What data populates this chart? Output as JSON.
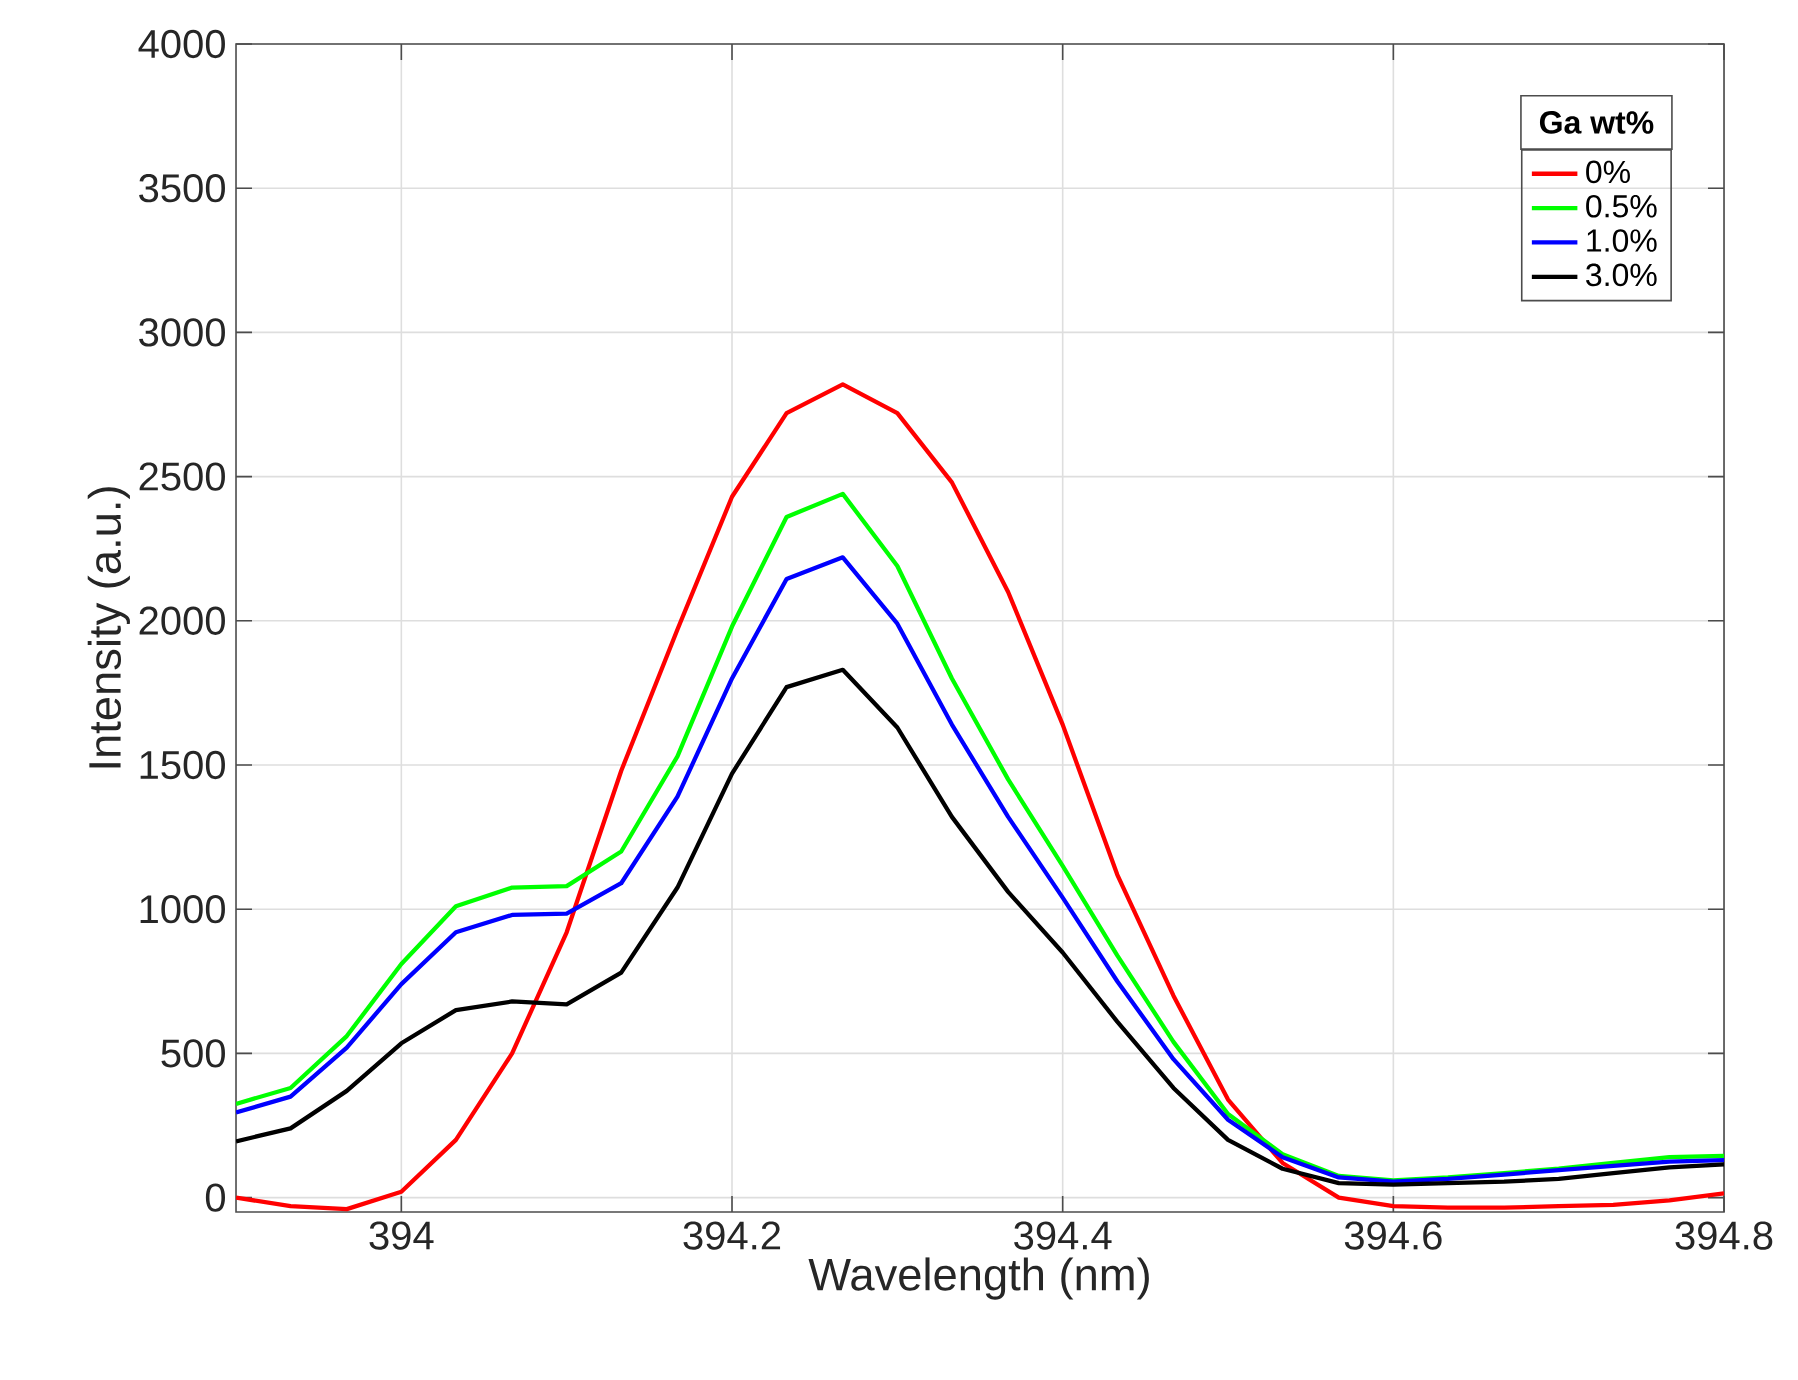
{
  "chart_data": {
    "type": "line",
    "xlabel": "Wavelength (nm)",
    "ylabel": "Intensity (a.u.)",
    "legend_title": "Ga wt%",
    "x": [
      393.9,
      393.9333,
      393.9667,
      394.0,
      394.0333,
      394.0667,
      394.1,
      394.1333,
      394.1667,
      394.2,
      394.2333,
      394.2667,
      394.3,
      394.3333,
      394.3667,
      394.4,
      394.4333,
      394.4667,
      394.5,
      394.5333,
      394.5667,
      394.6,
      394.6333,
      394.6667,
      394.7,
      394.7333,
      394.7667,
      394.8
    ],
    "series": [
      {
        "name": "0%",
        "color": "#ff0000",
        "values": [
          0,
          -30,
          -40,
          20,
          200,
          500,
          920,
          1480,
          1970,
          2430,
          2720,
          2820,
          2720,
          2480,
          2100,
          1640,
          1120,
          700,
          340,
          120,
          0,
          -30,
          -35,
          -35,
          -30,
          -25,
          -10,
          15
        ]
      },
      {
        "name": "0.5%",
        "color": "#00ff00",
        "values": [
          325,
          380,
          560,
          810,
          1010,
          1075,
          1080,
          1200,
          1530,
          1980,
          2360,
          2440,
          2190,
          1800,
          1450,
          1150,
          840,
          540,
          290,
          150,
          75,
          60,
          70,
          85,
          100,
          120,
          140,
          145
        ]
      },
      {
        "name": "1.0%",
        "color": "#0000ff",
        "values": [
          295,
          350,
          520,
          740,
          920,
          980,
          985,
          1090,
          1390,
          1800,
          2145,
          2220,
          1990,
          1640,
          1320,
          1040,
          750,
          480,
          270,
          140,
          70,
          55,
          65,
          80,
          95,
          110,
          125,
          130
        ]
      },
      {
        "name": "3.0%",
        "color": "#000000",
        "values": [
          195,
          240,
          370,
          535,
          650,
          680,
          670,
          780,
          1075,
          1470,
          1770,
          1830,
          1630,
          1320,
          1060,
          850,
          610,
          380,
          200,
          100,
          50,
          45,
          50,
          55,
          65,
          85,
          105,
          115
        ]
      }
    ],
    "xlim": [
      393.9,
      394.8
    ],
    "ylim": [
      -50,
      4000
    ],
    "xticks": [
      394,
      394.2,
      394.4,
      394.6,
      394.8
    ],
    "yticks": [
      0,
      500,
      1000,
      1500,
      2000,
      2500,
      3000,
      3500,
      4000
    ],
    "grid": true,
    "legend": "top right",
    "line_style": "solid",
    "marker": "none"
  }
}
